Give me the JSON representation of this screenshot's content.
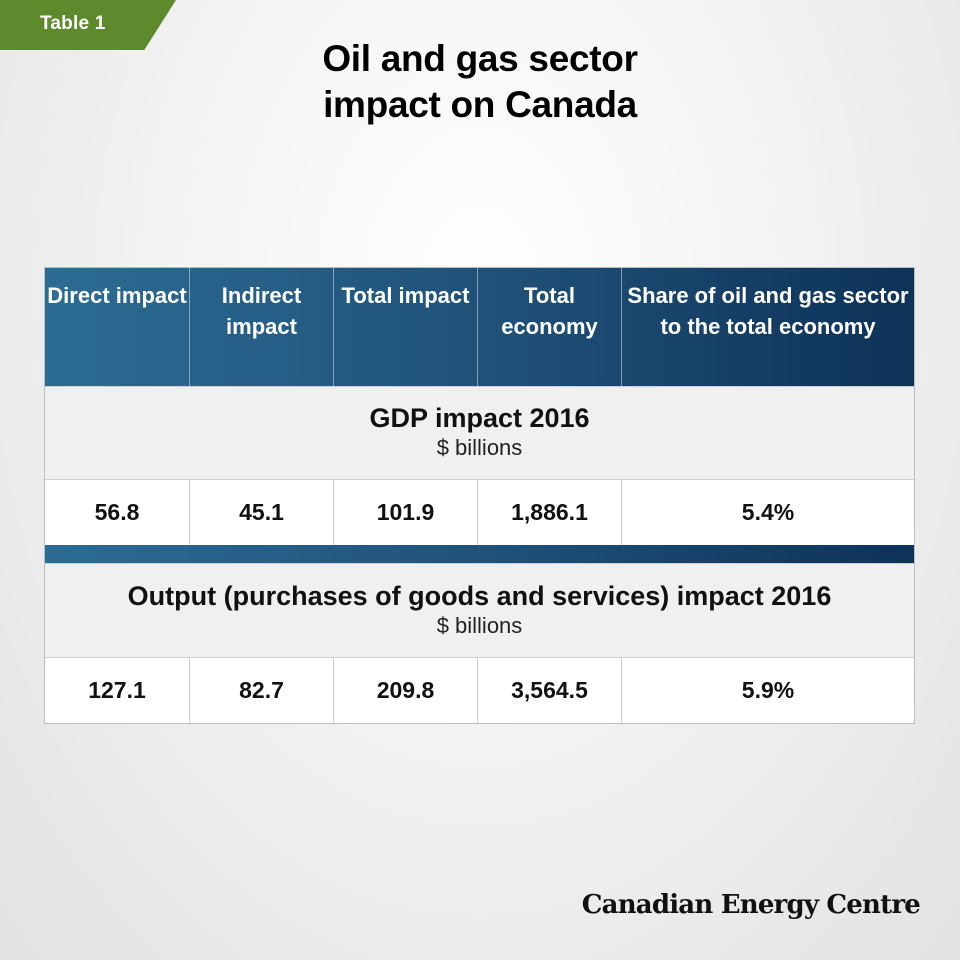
{
  "tag": "Table 1",
  "title_lines": [
    "Oil and gas sector",
    "impact on Canada"
  ],
  "table": {
    "headers": [
      "Direct impact",
      "Indirect impact",
      "Total impact",
      "Total economy",
      "Share of oil and gas sector to the total economy"
    ],
    "sections": [
      {
        "title": "GDP impact 2016",
        "unit": "$ billions",
        "values": [
          "56.8",
          "45.1",
          "101.9",
          "1,886.1",
          "5.4%"
        ]
      },
      {
        "title": "Output (purchases of goods and services) impact 2016",
        "unit": "$ billions",
        "values": [
          "127.1",
          "82.7",
          "209.8",
          "3,564.5",
          "5.9%"
        ]
      }
    ]
  },
  "footer": "Canadian Energy Centre",
  "colors": {
    "tag": "#5c8a2d",
    "header": "#1e4f77",
    "header_dark": "#0e3258"
  }
}
